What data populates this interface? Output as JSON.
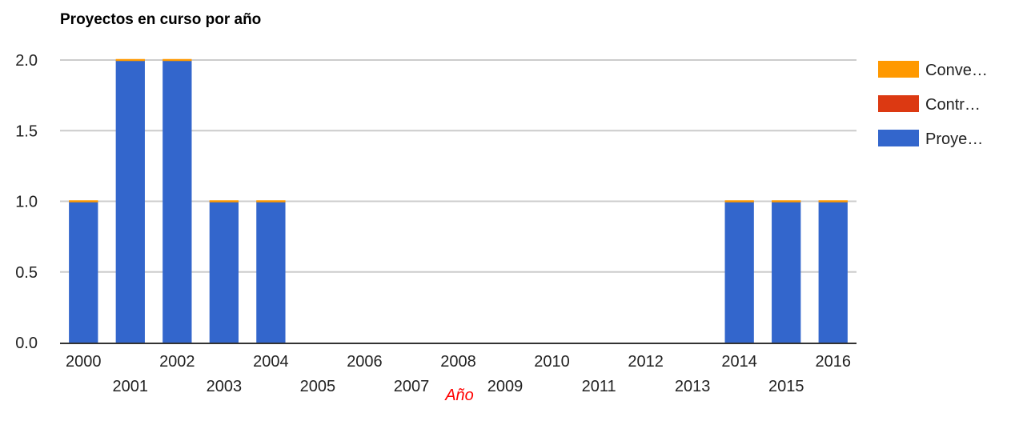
{
  "chart_data": {
    "type": "bar",
    "stacked": true,
    "title": "Proyectos en curso por año",
    "xlabel": "Año",
    "ylabel": "",
    "ylim": [
      0,
      2
    ],
    "yticks": [
      "0.0",
      "0.5",
      "1.0",
      "1.5",
      "2.0"
    ],
    "grid": true,
    "legend_position": "right",
    "categories": [
      "2000",
      "2001",
      "2002",
      "2003",
      "2004",
      "2005",
      "2006",
      "2007",
      "2008",
      "2009",
      "2010",
      "2011",
      "2012",
      "2013",
      "2014",
      "2015",
      "2016"
    ],
    "series": [
      {
        "name": "Proye…",
        "color": "#3366cc",
        "values": [
          1,
          2,
          2,
          1,
          1,
          0,
          0,
          0,
          0,
          0,
          0,
          0,
          0,
          0,
          1,
          1,
          1
        ]
      },
      {
        "name": "Contr…",
        "color": "#dc3912",
        "values": [
          0,
          0,
          0,
          0,
          0,
          0,
          0,
          0,
          0,
          0,
          0,
          0,
          0,
          0,
          0,
          0,
          0
        ]
      },
      {
        "name": "Conve…",
        "color": "#ff9900",
        "values": [
          0,
          0,
          0,
          0,
          0,
          0,
          0,
          0,
          0,
          0,
          0,
          0,
          0,
          0,
          0,
          0,
          0
        ]
      }
    ],
    "legend_order": [
      "Conve…",
      "Contr…",
      "Proye…"
    ]
  }
}
